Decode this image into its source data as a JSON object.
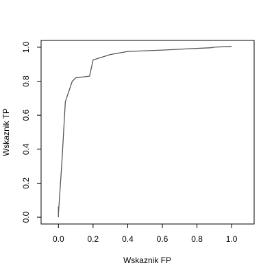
{
  "chart_data": {
    "type": "line",
    "title": "",
    "xlabel": "Wskaznik FP",
    "ylabel": "Wskaznik TP",
    "xlim": [
      -0.1,
      1.13
    ],
    "ylim": [
      -0.04,
      1.04
    ],
    "xticks": [
      "0.0",
      "0.2",
      "0.4",
      "0.6",
      "0.8",
      "1.0"
    ],
    "yticks": [
      "0.0",
      "0.2",
      "0.4",
      "0.6",
      "0.8",
      "1.0"
    ],
    "grid": false,
    "series": [
      {
        "color": "#555555",
        "x": [
          0.0,
          0.0,
          0.0,
          0.02,
          0.04,
          0.06,
          0.08,
          0.1,
          0.18,
          0.2,
          0.3,
          0.4,
          0.6,
          0.88,
          0.9,
          1.0
        ],
        "y": [
          0.0,
          0.06,
          0.02,
          0.32,
          0.68,
          0.74,
          0.8,
          0.82,
          0.83,
          0.925,
          0.957,
          0.975,
          0.983,
          0.997,
          1.0,
          1.005
        ]
      }
    ]
  }
}
